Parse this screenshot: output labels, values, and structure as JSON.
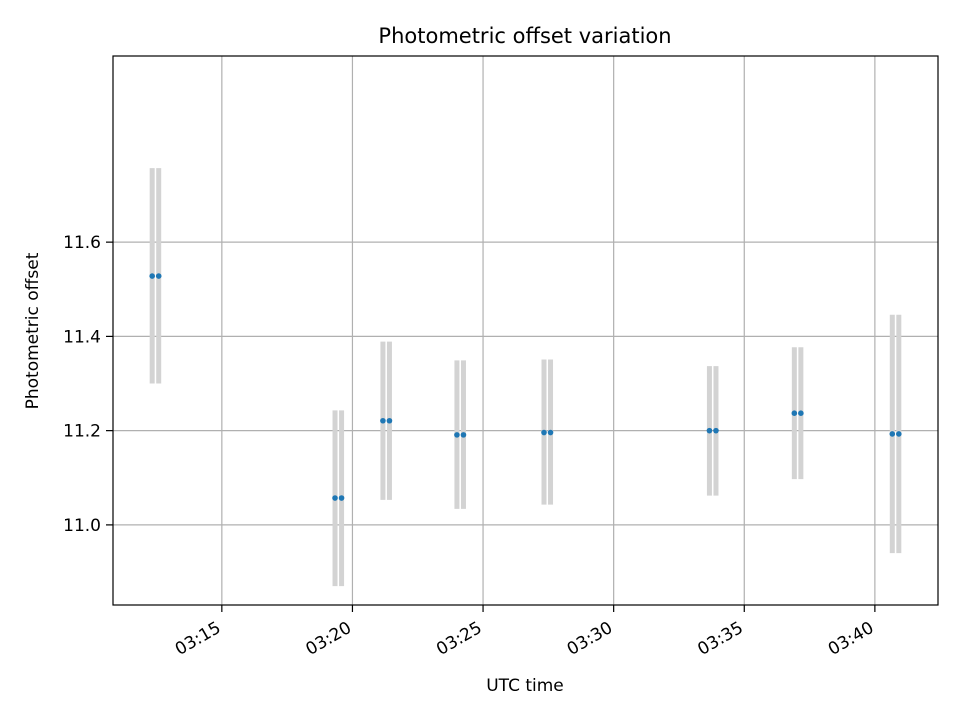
{
  "chart_data": {
    "type": "scatter",
    "title": "Photometric offset variation",
    "xlabel": "UTC time",
    "ylabel": "Photometric offset",
    "grid": true,
    "xlim": [
      "03:10:50",
      "03:42:25"
    ],
    "ylim": [
      10.83,
      11.995
    ],
    "xticks": [
      "03:15",
      "03:20",
      "03:25",
      "03:30",
      "03:35",
      "03:40"
    ],
    "yticks": [
      11.0,
      11.2,
      11.4,
      11.6
    ],
    "colors": {
      "points": "#1f77b4",
      "error_bars": "#d3d3d3",
      "grid": "#b0b0b0"
    },
    "series": [
      {
        "points": [
          {
            "x": "03:12:20",
            "y": 11.528,
            "yerr_low": 11.3,
            "yerr_high": 11.757
          },
          {
            "x": "03:12:35",
            "y": 11.528,
            "yerr_low": 11.3,
            "yerr_high": 11.757
          },
          {
            "x": "03:19:20",
            "y": 11.057,
            "yerr_low": 10.87,
            "yerr_high": 11.243
          },
          {
            "x": "03:19:35",
            "y": 11.057,
            "yerr_low": 10.87,
            "yerr_high": 11.243
          },
          {
            "x": "03:21:10",
            "y": 11.221,
            "yerr_low": 11.053,
            "yerr_high": 11.389
          },
          {
            "x": "03:21:25",
            "y": 11.221,
            "yerr_low": 11.053,
            "yerr_high": 11.389
          },
          {
            "x": "03:24:00",
            "y": 11.191,
            "yerr_low": 11.034,
            "yerr_high": 11.349
          },
          {
            "x": "03:24:15",
            "y": 11.191,
            "yerr_low": 11.034,
            "yerr_high": 11.349
          },
          {
            "x": "03:27:20",
            "y": 11.196,
            "yerr_low": 11.043,
            "yerr_high": 11.351
          },
          {
            "x": "03:27:35",
            "y": 11.196,
            "yerr_low": 11.043,
            "yerr_high": 11.351
          },
          {
            "x": "03:33:40",
            "y": 11.2,
            "yerr_low": 11.062,
            "yerr_high": 11.337
          },
          {
            "x": "03:33:55",
            "y": 11.2,
            "yerr_low": 11.062,
            "yerr_high": 11.337
          },
          {
            "x": "03:36:55",
            "y": 11.237,
            "yerr_low": 11.097,
            "yerr_high": 11.377
          },
          {
            "x": "03:37:10",
            "y": 11.237,
            "yerr_low": 11.097,
            "yerr_high": 11.377
          },
          {
            "x": "03:40:40",
            "y": 11.193,
            "yerr_low": 10.94,
            "yerr_high": 11.446
          },
          {
            "x": "03:40:55",
            "y": 11.193,
            "yerr_low": 10.94,
            "yerr_high": 11.446
          }
        ]
      }
    ]
  }
}
